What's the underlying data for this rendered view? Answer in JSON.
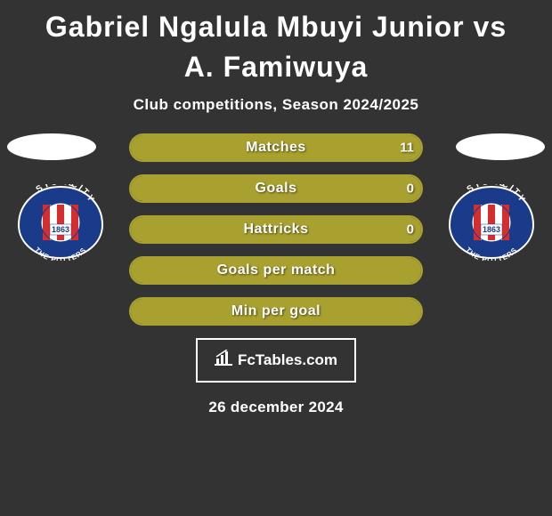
{
  "title": "Gabriel Ngalula Mbuyi Junior vs A. Famiwuya",
  "subtitle": "Club competitions, Season 2024/2025",
  "date": "26 december 2024",
  "fctables_label": "FcTables.com",
  "colors": {
    "background": "#333333",
    "bar_border": "#a9a12f",
    "bar_fill": "#a9a12f",
    "text": "#ffffff"
  },
  "badge": {
    "top_text": "STOKE",
    "mid_text": "CITY",
    "year": "1863",
    "bottom_text": "THE POTTERS",
    "outer_fill": "#1a3a8a",
    "stripe_red": "#d42e2e",
    "stripe_white": "#ffffff",
    "text_color": "#ffffff"
  },
  "bars": [
    {
      "label": "Matches",
      "left_value": "",
      "right_value": "11",
      "left_pct": 0,
      "right_pct": 100
    },
    {
      "label": "Goals",
      "left_value": "",
      "right_value": "0",
      "left_pct": 50,
      "right_pct": 50
    },
    {
      "label": "Hattricks",
      "left_value": "",
      "right_value": "0",
      "left_pct": 50,
      "right_pct": 50
    },
    {
      "label": "Goals per match",
      "left_value": "",
      "right_value": "",
      "left_pct": 50,
      "right_pct": 50
    },
    {
      "label": "Min per goal",
      "left_value": "",
      "right_value": "",
      "left_pct": 50,
      "right_pct": 50
    }
  ]
}
